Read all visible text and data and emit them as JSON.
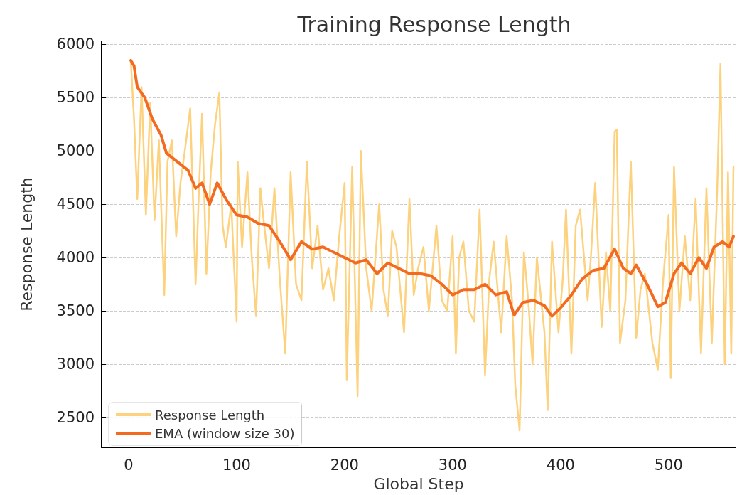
{
  "chart_data": {
    "type": "line",
    "title": "Training Response Length",
    "xlabel": "Global Step",
    "ylabel": "Response Length",
    "xlim": [
      -25,
      562
    ],
    "xticks": [
      0,
      100,
      200,
      300,
      400,
      500
    ],
    "ylim": [
      2220,
      6030
    ],
    "yticks": [
      2500,
      3000,
      3500,
      4000,
      4500,
      5000,
      5500,
      6000
    ],
    "grid": true,
    "legend": "bottom left",
    "marker": "none",
    "line_style": "solid",
    "series": [
      {
        "name": "Response Length",
        "color": "#fdd27f",
        "x": [
          2,
          5,
          8,
          12,
          16,
          20,
          24,
          28,
          33,
          36,
          40,
          44,
          48,
          52,
          57,
          62,
          65,
          68,
          72,
          76,
          80,
          84,
          87,
          90,
          95,
          100,
          101,
          105,
          110,
          114,
          118,
          122,
          125,
          130,
          135,
          140,
          145,
          150,
          155,
          160,
          165,
          170,
          175,
          180,
          185,
          190,
          195,
          200,
          202,
          207,
          212,
          215,
          220,
          225,
          232,
          236,
          240,
          244,
          248,
          255,
          260,
          264,
          268,
          273,
          278,
          285,
          290,
          295,
          300,
          303,
          306,
          310,
          315,
          320,
          325,
          330,
          334,
          338,
          345,
          350,
          355,
          358,
          362,
          366,
          370,
          374,
          378,
          385,
          388,
          392,
          398,
          402,
          405,
          410,
          414,
          418,
          425,
          428,
          432,
          438,
          442,
          446,
          450,
          452,
          455,
          460,
          465,
          470,
          474,
          478,
          485,
          490,
          495,
          500,
          502,
          505,
          510,
          515,
          520,
          525,
          530,
          535,
          540,
          545,
          548,
          552,
          555,
          558,
          560
        ],
        "values": [
          5850,
          5300,
          4550,
          5600,
          4400,
          5450,
          4350,
          5100,
          3650,
          4900,
          5100,
          4200,
          4700,
          5000,
          5400,
          3750,
          4600,
          5350,
          3850,
          4800,
          5250,
          5550,
          4300,
          4100,
          4500,
          3400,
          4900,
          4100,
          4800,
          4000,
          3450,
          4650,
          4350,
          3900,
          4650,
          3800,
          3100,
          4800,
          3750,
          3600,
          4900,
          3900,
          4300,
          3700,
          3900,
          3600,
          4200,
          4700,
          2850,
          4850,
          2700,
          5000,
          3900,
          3500,
          4500,
          3700,
          3450,
          4250,
          4100,
          3300,
          4550,
          3650,
          3900,
          4100,
          3500,
          4300,
          3600,
          3500,
          4200,
          3100,
          4000,
          4150,
          3500,
          3400,
          4450,
          2900,
          3800,
          4150,
          3300,
          4200,
          3600,
          2800,
          2380,
          4050,
          3600,
          3000,
          4000,
          3300,
          2570,
          4150,
          3300,
          3800,
          4450,
          3100,
          4300,
          4450,
          3600,
          4000,
          4700,
          3350,
          4050,
          3500,
          5180,
          5200,
          3200,
          3600,
          4900,
          3250,
          3700,
          3850,
          3200,
          2950,
          3800,
          4400,
          2870,
          4850,
          3500,
          4200,
          3600,
          4550,
          3100,
          4650,
          3200,
          4650,
          5820,
          3000,
          4800,
          3100,
          4850
        ]
      },
      {
        "name": "EMA (window size 30)",
        "color": "#f26b21",
        "x": [
          2,
          5,
          8,
          15,
          22,
          30,
          35,
          45,
          55,
          62,
          68,
          75,
          82,
          90,
          100,
          110,
          120,
          130,
          140,
          150,
          160,
          170,
          180,
          190,
          200,
          210,
          220,
          230,
          240,
          250,
          260,
          270,
          280,
          290,
          300,
          310,
          320,
          330,
          340,
          350,
          357,
          365,
          375,
          385,
          392,
          400,
          410,
          420,
          430,
          440,
          450,
          458,
          465,
          470,
          480,
          490,
          497,
          505,
          512,
          520,
          528,
          535,
          542,
          550,
          556,
          560
        ],
        "values": [
          5850,
          5800,
          5600,
          5500,
          5300,
          5150,
          4980,
          4900,
          4820,
          4650,
          4700,
          4500,
          4700,
          4550,
          4400,
          4380,
          4320,
          4300,
          4150,
          3980,
          4150,
          4080,
          4100,
          4050,
          4000,
          3950,
          3980,
          3850,
          3950,
          3900,
          3850,
          3850,
          3830,
          3750,
          3650,
          3700,
          3700,
          3750,
          3650,
          3680,
          3460,
          3580,
          3600,
          3550,
          3450,
          3530,
          3650,
          3800,
          3880,
          3900,
          4080,
          3900,
          3850,
          3930,
          3750,
          3540,
          3580,
          3850,
          3950,
          3850,
          4000,
          3900,
          4100,
          4150,
          4100,
          4200
        ]
      }
    ]
  }
}
